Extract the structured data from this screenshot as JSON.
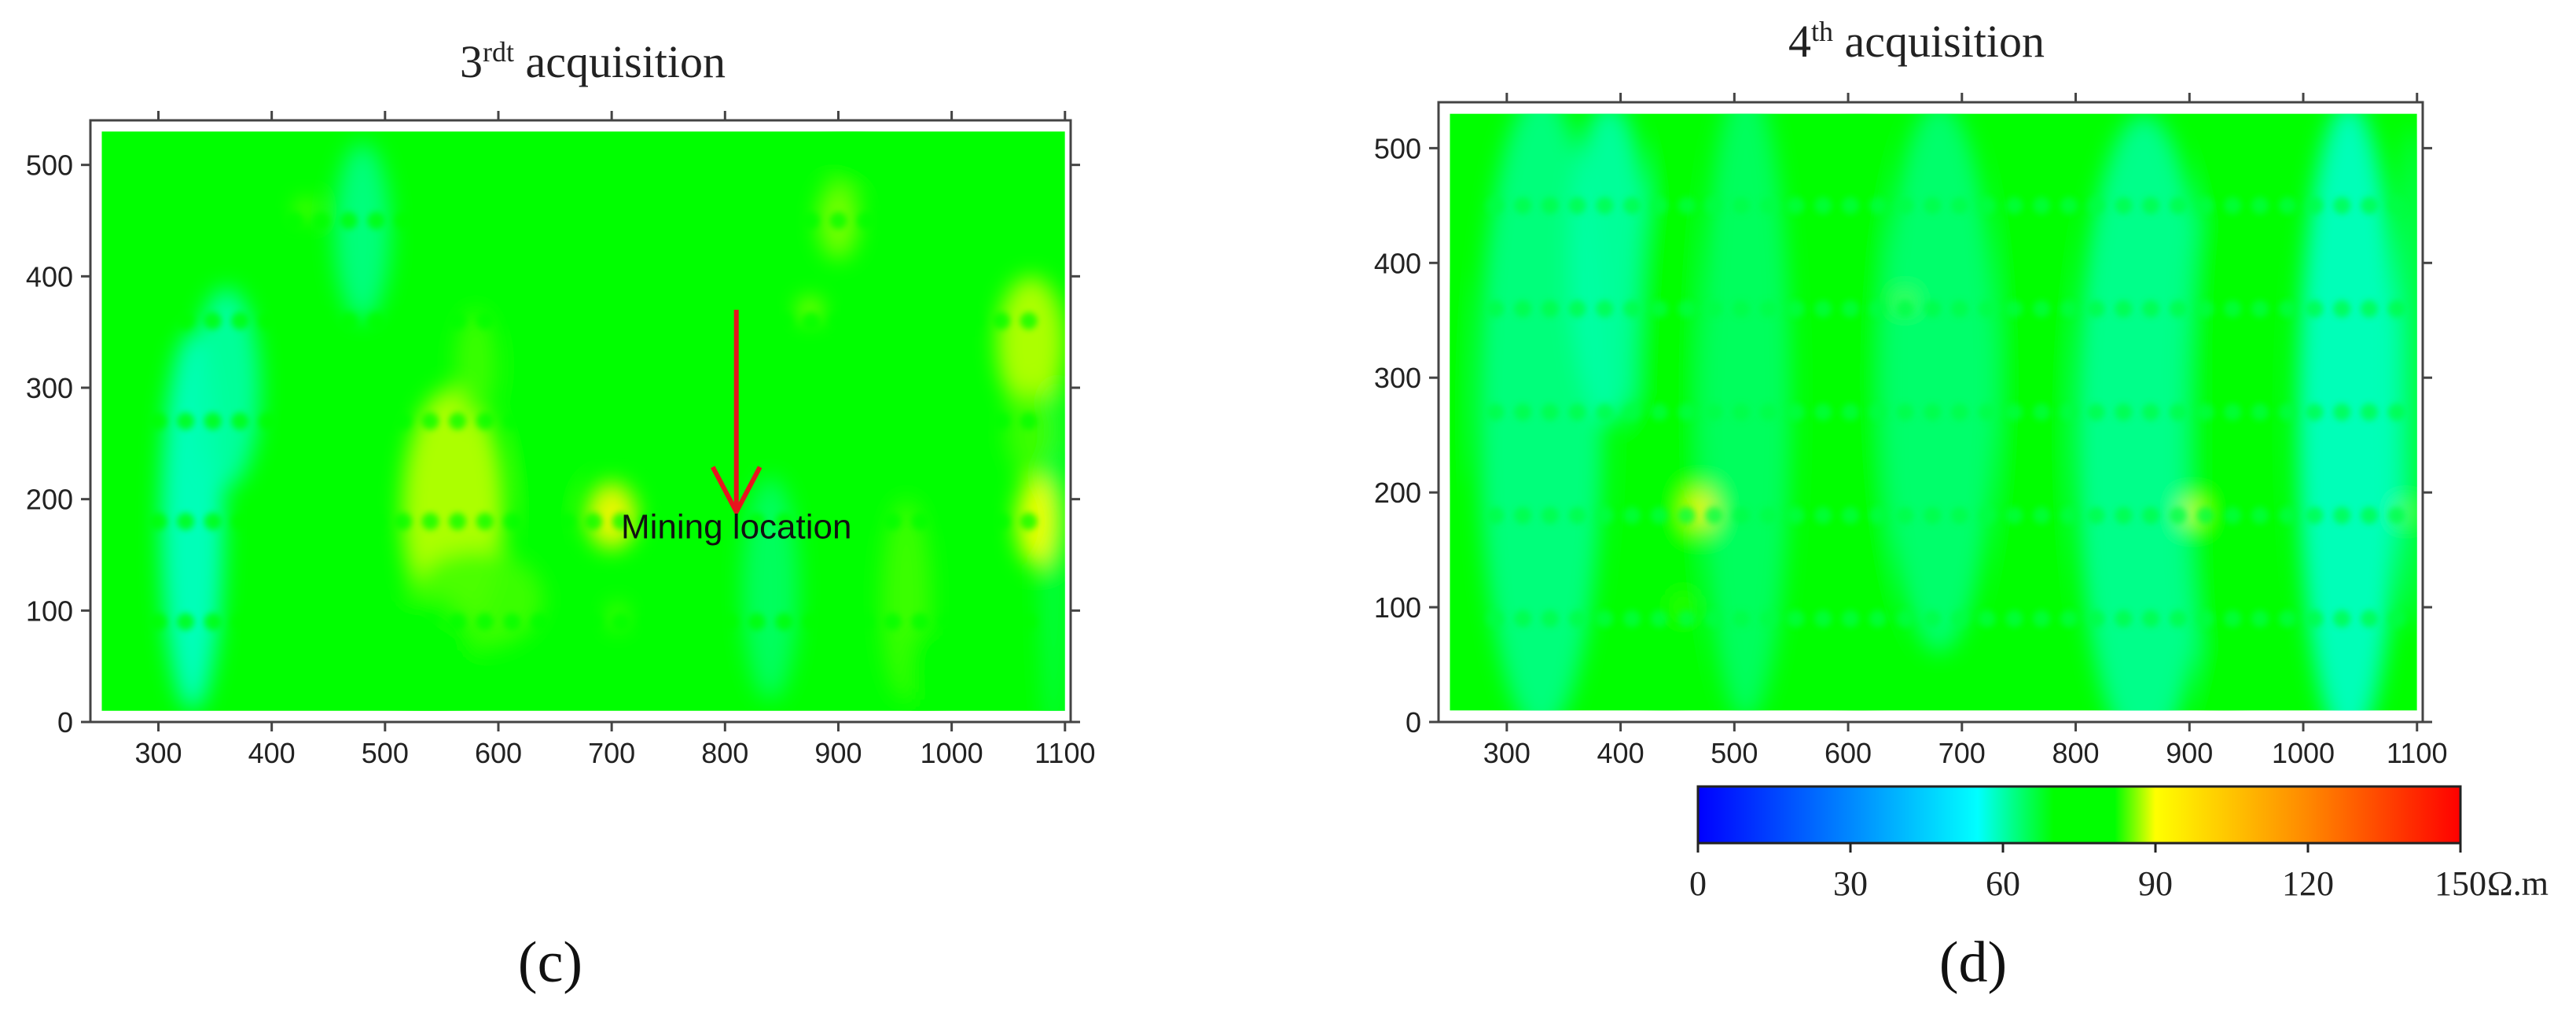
{
  "chart_data": [
    {
      "type": "heatmap",
      "title": "3rdt acquisition",
      "title_main": "3",
      "title_sup": "rdt",
      "title_rest": " acquisition",
      "panel_label": "(c)",
      "xlim": [
        240,
        1105
      ],
      "ylim": [
        0,
        540
      ],
      "x_ticks": [
        300,
        400,
        500,
        600,
        700,
        800,
        900,
        1000,
        1100
      ],
      "y_ticks": [
        0,
        100,
        200,
        300,
        400,
        500
      ],
      "data_extent": {
        "x": [
          250,
          1100
        ],
        "y": [
          10,
          530
        ]
      },
      "background_value": 78,
      "annotations": [
        {
          "text": "Mining location",
          "x": 810,
          "y": 165
        },
        {
          "type": "arrow",
          "color": "#e8141e",
          "from": [
            810,
            370
          ],
          "to": [
            810,
            190
          ]
        }
      ],
      "blobs": [
        {
          "x": 330,
          "y": 180,
          "rx": 28,
          "ry": 170,
          "v": 58
        },
        {
          "x": 360,
          "y": 300,
          "rx": 30,
          "ry": 90,
          "v": 60
        },
        {
          "x": 480,
          "y": 440,
          "rx": 25,
          "ry": 80,
          "v": 62
        },
        {
          "x": 840,
          "y": 120,
          "rx": 25,
          "ry": 100,
          "v": 64
        },
        {
          "x": 1090,
          "y": 150,
          "rx": 12,
          "ry": 170,
          "v": 66
        },
        {
          "x": 640,
          "y": 290,
          "rx": 25,
          "ry": 120,
          "v": 70
        },
        {
          "x": 560,
          "y": 190,
          "rx": 45,
          "ry": 110,
          "v": 88
        },
        {
          "x": 580,
          "y": 110,
          "rx": 60,
          "ry": 45,
          "v": 84
        },
        {
          "x": 580,
          "y": 320,
          "rx": 18,
          "ry": 50,
          "v": 84
        },
        {
          "x": 540,
          "y": 60,
          "rx": 40,
          "ry": 55,
          "v": 82
        },
        {
          "x": 700,
          "y": 185,
          "rx": 22,
          "ry": 30,
          "v": 92
        },
        {
          "x": 705,
          "y": 95,
          "rx": 6,
          "ry": 12,
          "v": 86
        },
        {
          "x": 960,
          "y": 110,
          "rx": 22,
          "ry": 90,
          "v": 84
        },
        {
          "x": 975,
          "y": 45,
          "rx": 15,
          "ry": 40,
          "v": 82
        },
        {
          "x": 900,
          "y": 450,
          "rx": 18,
          "ry": 35,
          "v": 86
        },
        {
          "x": 910,
          "y": 505,
          "rx": 20,
          "ry": 30,
          "v": 82
        },
        {
          "x": 1070,
          "y": 340,
          "rx": 30,
          "ry": 60,
          "v": 88
        },
        {
          "x": 1075,
          "y": 180,
          "rx": 18,
          "ry": 40,
          "v": 90
        },
        {
          "x": 1070,
          "y": 260,
          "rx": 22,
          "ry": 40,
          "v": 84
        },
        {
          "x": 430,
          "y": 460,
          "rx": 6,
          "ry": 6,
          "v": 90
        },
        {
          "x": 875,
          "y": 370,
          "rx": 10,
          "ry": 10,
          "v": 88
        }
      ],
      "dot_rows": [
        {
          "y": 450,
          "x0": 300,
          "x1": 1090,
          "dx": 24,
          "v": 72
        },
        {
          "y": 360,
          "x0": 300,
          "x1": 1090,
          "dx": 24,
          "v": 72
        },
        {
          "y": 270,
          "x0": 300,
          "x1": 1090,
          "dx": 24,
          "v": 72
        },
        {
          "y": 180,
          "x0": 300,
          "x1": 1090,
          "dx": 24,
          "v": 72
        },
        {
          "y": 90,
          "x0": 300,
          "x1": 1090,
          "dx": 24,
          "v": 72
        }
      ]
    },
    {
      "type": "heatmap",
      "title": "4th acquisition",
      "title_main": "4",
      "title_sup": "th",
      "title_rest": " acquisition",
      "panel_label": "(d)",
      "xlim": [
        240,
        1105
      ],
      "ylim": [
        0,
        540
      ],
      "x_ticks": [
        300,
        400,
        500,
        600,
        700,
        800,
        900,
        1000,
        1100
      ],
      "y_ticks": [
        0,
        100,
        200,
        300,
        400,
        500
      ],
      "data_extent": {
        "x": [
          250,
          1100
        ],
        "y": [
          10,
          530
        ]
      },
      "background_value": 72,
      "annotations": [],
      "blobs": [
        {
          "x": 330,
          "y": 270,
          "rx": 55,
          "ry": 280,
          "v": 62
        },
        {
          "x": 390,
          "y": 400,
          "rx": 35,
          "ry": 140,
          "v": 60
        },
        {
          "x": 510,
          "y": 280,
          "rx": 40,
          "ry": 280,
          "v": 64
        },
        {
          "x": 440,
          "y": 250,
          "rx": 30,
          "ry": 260,
          "v": 78
        },
        {
          "x": 610,
          "y": 260,
          "rx": 30,
          "ry": 280,
          "v": 78
        },
        {
          "x": 680,
          "y": 300,
          "rx": 50,
          "ry": 240,
          "v": 63
        },
        {
          "x": 760,
          "y": 300,
          "rx": 30,
          "ry": 230,
          "v": 76
        },
        {
          "x": 860,
          "y": 250,
          "rx": 60,
          "ry": 280,
          "v": 61
        },
        {
          "x": 930,
          "y": 250,
          "rx": 35,
          "ry": 260,
          "v": 74
        },
        {
          "x": 1040,
          "y": 260,
          "rx": 45,
          "ry": 280,
          "v": 58
        },
        {
          "x": 1095,
          "y": 300,
          "rx": 12,
          "ry": 220,
          "v": 64
        },
        {
          "x": 255,
          "y": 300,
          "rx": 8,
          "ry": 90,
          "v": 74
        },
        {
          "x": 470,
          "y": 185,
          "rx": 13,
          "ry": 18,
          "v": 92
        },
        {
          "x": 903,
          "y": 183,
          "rx": 8,
          "ry": 10,
          "v": 90
        },
        {
          "x": 1090,
          "y": 183,
          "rx": 4,
          "ry": 5,
          "v": 88
        },
        {
          "x": 650,
          "y": 367,
          "rx": 6,
          "ry": 5,
          "v": 86
        },
        {
          "x": 455,
          "y": 100,
          "rx": 6,
          "ry": 12,
          "v": 84
        }
      ],
      "dot_rows": [
        {
          "y": 450,
          "x0": 290,
          "x1": 1090,
          "dx": 24,
          "v": 66
        },
        {
          "y": 360,
          "x0": 290,
          "x1": 1090,
          "dx": 24,
          "v": 66
        },
        {
          "y": 270,
          "x0": 290,
          "x1": 1090,
          "dx": 24,
          "v": 66
        },
        {
          "y": 180,
          "x0": 290,
          "x1": 1090,
          "dx": 24,
          "v": 66
        },
        {
          "y": 90,
          "x0": 290,
          "x1": 1090,
          "dx": 24,
          "v": 66
        }
      ]
    }
  ],
  "colorbar": {
    "ticks": [
      0,
      30,
      60,
      90,
      120,
      150
    ],
    "unit": "Ω.m",
    "range": [
      0,
      150
    ],
    "stops": [
      {
        "v": 0,
        "color": "#0000ff"
      },
      {
        "v": 30,
        "color": "#0088ff"
      },
      {
        "v": 55,
        "color": "#00ffff"
      },
      {
        "v": 70,
        "color": "#00ff00"
      },
      {
        "v": 82,
        "color": "#00ff00"
      },
      {
        "v": 90,
        "color": "#ffff00"
      },
      {
        "v": 120,
        "color": "#ff8800"
      },
      {
        "v": 150,
        "color": "#ff0000"
      }
    ]
  }
}
